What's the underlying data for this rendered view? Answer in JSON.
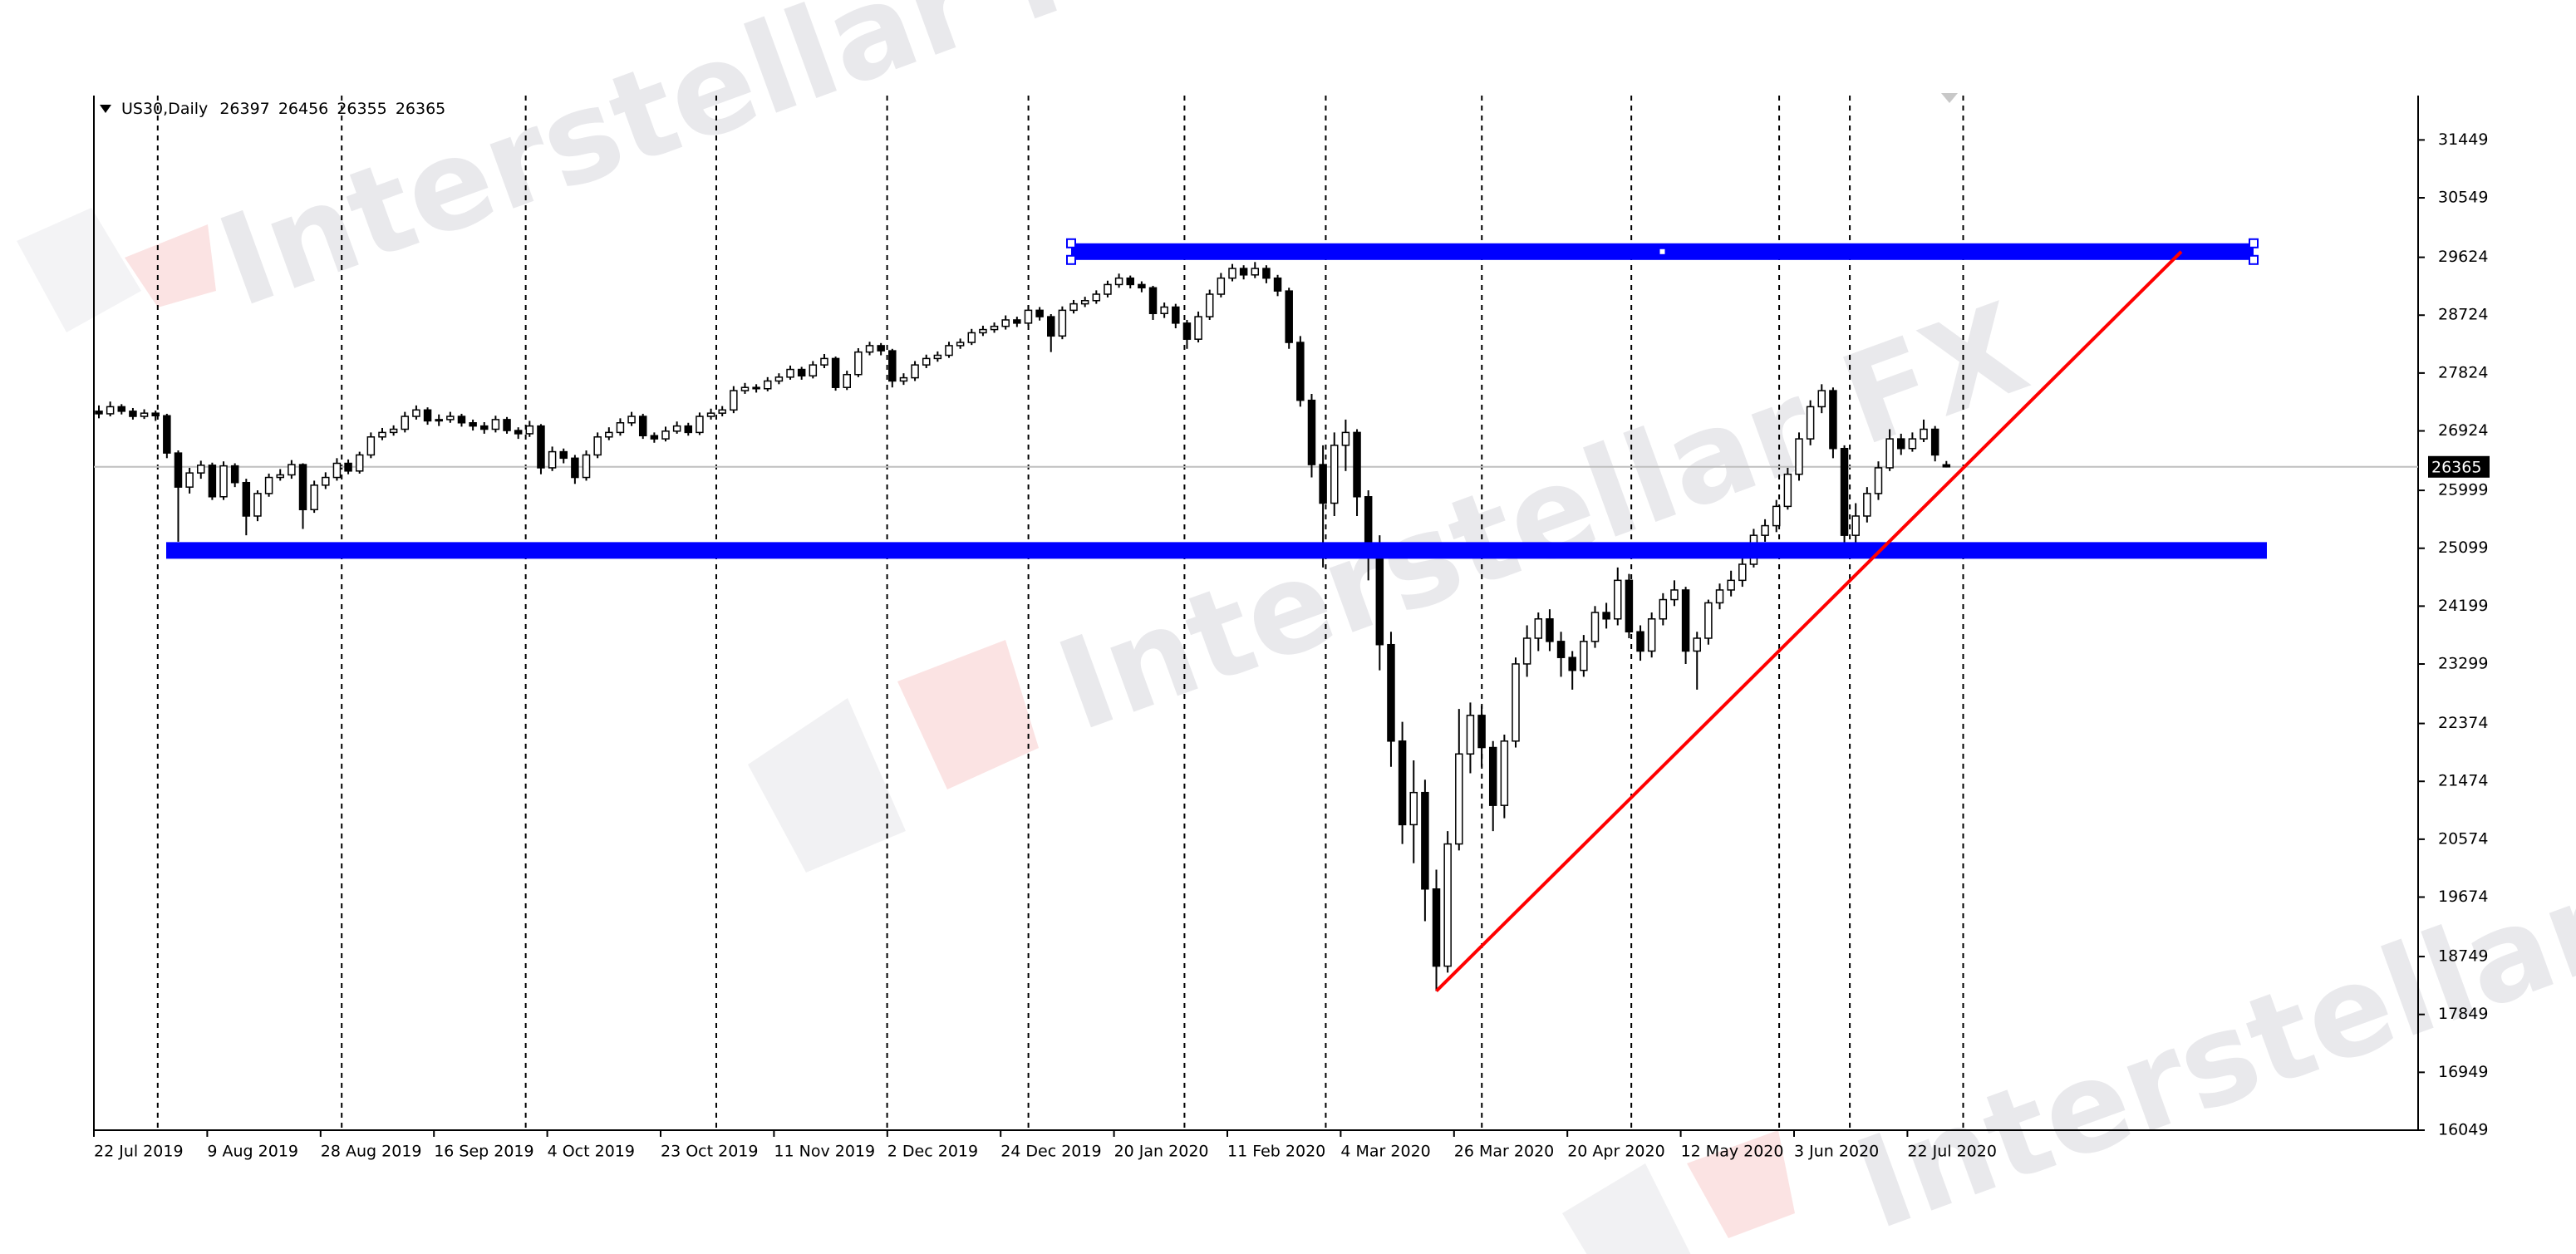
{
  "chart_data": {
    "type": "candlestick",
    "title": "US30,Daily",
    "color": "#000000",
    "categories": [
      "22 Jul 2019",
      null,
      null,
      null,
      null,
      null,
      null,
      null,
      null,
      null,
      "9 Aug 2019",
      null,
      null,
      null,
      null,
      null,
      null,
      null,
      null,
      null,
      "28 Aug 2019",
      null,
      null,
      null,
      null,
      null,
      null,
      null,
      null,
      null,
      "16 Sep 2019",
      null,
      null,
      null,
      null,
      null,
      null,
      null,
      null,
      null,
      "4 Oct 2019",
      null,
      null,
      null,
      null,
      null,
      null,
      null,
      null,
      null,
      "23 Oct 2019",
      null,
      null,
      null,
      null,
      null,
      null,
      null,
      null,
      null,
      "11 Nov 2019",
      null,
      null,
      null,
      null,
      null,
      null,
      null,
      null,
      null,
      "2 Dec 2019",
      null,
      null,
      null,
      null,
      null,
      null,
      null,
      null,
      null,
      "24 Dec 2019",
      null,
      null,
      null,
      null,
      null,
      null,
      null,
      null,
      null,
      "20 Jan 2020",
      null,
      null,
      null,
      null,
      null,
      null,
      null,
      null,
      null,
      "11 Feb 2020",
      null,
      null,
      null,
      null,
      null,
      null,
      null,
      null,
      null,
      "4 Mar 2020",
      null,
      null,
      null,
      null,
      null,
      null,
      null,
      null,
      null,
      "26 Mar 2020",
      null,
      null,
      null,
      null,
      null,
      null,
      null,
      null,
      null,
      "20 Apr 2020",
      null,
      null,
      null,
      null,
      null,
      null,
      null,
      null,
      null,
      "12 May 2020",
      null,
      null,
      null,
      null,
      null,
      null,
      null,
      null,
      null,
      "3 Jun 2020",
      null,
      null,
      null,
      null,
      null,
      null,
      null,
      null,
      null,
      "22 Jul 2020",
      null,
      null,
      null
    ],
    "ohlc": [
      [
        27230,
        27320,
        27120,
        27190
      ],
      [
        27190,
        27380,
        27150,
        27300
      ],
      [
        27300,
        27340,
        27180,
        27230
      ],
      [
        27230,
        27280,
        27100,
        27150
      ],
      [
        27150,
        27260,
        27110,
        27200
      ],
      [
        27200,
        27240,
        27080,
        27160
      ],
      [
        27160,
        27190,
        26500,
        26580
      ],
      [
        26580,
        26620,
        25200,
        26050
      ],
      [
        26050,
        26350,
        25950,
        26270
      ],
      [
        26270,
        26460,
        26180,
        26390
      ],
      [
        26390,
        26430,
        25850,
        25900
      ],
      [
        25900,
        26450,
        25850,
        26380
      ],
      [
        26380,
        26420,
        26050,
        26120
      ],
      [
        26120,
        26180,
        25300,
        25600
      ],
      [
        25600,
        26000,
        25520,
        25950
      ],
      [
        25950,
        26260,
        25900,
        26200
      ],
      [
        26200,
        26330,
        26150,
        26240
      ],
      [
        26240,
        26470,
        26180,
        26400
      ],
      [
        26400,
        26420,
        25400,
        25700
      ],
      [
        25700,
        26150,
        25650,
        26080
      ],
      [
        26080,
        26280,
        26020,
        26200
      ],
      [
        26200,
        26500,
        26150,
        26420
      ],
      [
        26420,
        26480,
        26250,
        26300
      ],
      [
        26300,
        26600,
        26260,
        26550
      ],
      [
        26550,
        26900,
        26500,
        26830
      ],
      [
        26830,
        26970,
        26780,
        26900
      ],
      [
        26900,
        27010,
        26850,
        26950
      ],
      [
        26950,
        27220,
        26900,
        27150
      ],
      [
        27150,
        27320,
        27100,
        27250
      ],
      [
        27250,
        27290,
        27020,
        27080
      ],
      [
        27080,
        27180,
        27000,
        27100
      ],
      [
        27100,
        27220,
        27050,
        27150
      ],
      [
        27150,
        27190,
        26990,
        27050
      ],
      [
        27050,
        27100,
        26930,
        27000
      ],
      [
        27000,
        27060,
        26880,
        26950
      ],
      [
        26950,
        27160,
        26900,
        27100
      ],
      [
        27100,
        27140,
        26880,
        26930
      ],
      [
        26930,
        26980,
        26800,
        26880
      ],
      [
        26880,
        27080,
        26830,
        27000
      ],
      [
        27000,
        27030,
        26250,
        26350
      ],
      [
        26350,
        26680,
        26300,
        26600
      ],
      [
        26600,
        26650,
        26420,
        26500
      ],
      [
        26500,
        26550,
        26100,
        26200
      ],
      [
        26200,
        26620,
        26150,
        26550
      ],
      [
        26550,
        26900,
        26500,
        26830
      ],
      [
        26830,
        26980,
        26780,
        26900
      ],
      [
        26900,
        27120,
        26850,
        27050
      ],
      [
        27050,
        27220,
        27000,
        27150
      ],
      [
        27150,
        27190,
        26800,
        26850
      ],
      [
        26850,
        26900,
        26740,
        26800
      ],
      [
        26800,
        26990,
        26760,
        26920
      ],
      [
        26920,
        27070,
        26880,
        27000
      ],
      [
        27000,
        27050,
        26850,
        26900
      ],
      [
        26900,
        27210,
        26860,
        27150
      ],
      [
        27150,
        27270,
        27100,
        27200
      ],
      [
        27200,
        27310,
        27150,
        27250
      ],
      [
        27250,
        27620,
        27200,
        27550
      ],
      [
        27550,
        27670,
        27500,
        27600
      ],
      [
        27600,
        27650,
        27520,
        27580
      ],
      [
        27580,
        27760,
        27540,
        27700
      ],
      [
        27700,
        27820,
        27650,
        27760
      ],
      [
        27760,
        27940,
        27720,
        27880
      ],
      [
        27880,
        27920,
        27720,
        27780
      ],
      [
        27780,
        28010,
        27740,
        27950
      ],
      [
        27950,
        28120,
        27900,
        28050
      ],
      [
        28050,
        28080,
        27550,
        27600
      ],
      [
        27600,
        27860,
        27560,
        27800
      ],
      [
        27800,
        28210,
        27760,
        28150
      ],
      [
        28150,
        28310,
        28100,
        28250
      ],
      [
        28250,
        28290,
        28100,
        28170
      ],
      [
        28170,
        28200,
        27600,
        27700
      ],
      [
        27700,
        27820,
        27640,
        27750
      ],
      [
        27750,
        28010,
        27700,
        27950
      ],
      [
        27950,
        28110,
        27900,
        28050
      ],
      [
        28050,
        28160,
        28000,
        28100
      ],
      [
        28100,
        28310,
        28060,
        28250
      ],
      [
        28250,
        28360,
        28200,
        28300
      ],
      [
        28300,
        28510,
        28260,
        28450
      ],
      [
        28450,
        28560,
        28400,
        28500
      ],
      [
        28500,
        28610,
        28450,
        28550
      ],
      [
        28550,
        28720,
        28500,
        28650
      ],
      [
        28650,
        28700,
        28540,
        28600
      ],
      [
        28600,
        28880,
        28560,
        28800
      ],
      [
        28800,
        28850,
        28640,
        28700
      ],
      [
        28700,
        28740,
        28150,
        28400
      ],
      [
        28400,
        28860,
        28350,
        28800
      ],
      [
        28800,
        28960,
        28750,
        28900
      ],
      [
        28900,
        29010,
        28850,
        28950
      ],
      [
        28950,
        29110,
        28900,
        29050
      ],
      [
        29050,
        29260,
        29000,
        29200
      ],
      [
        29200,
        29370,
        29150,
        29300
      ],
      [
        29300,
        29340,
        29140,
        29200
      ],
      [
        29200,
        29250,
        29080,
        29150
      ],
      [
        29150,
        29180,
        28650,
        28750
      ],
      [
        28750,
        28920,
        28680,
        28850
      ],
      [
        28850,
        28900,
        28520,
        28600
      ],
      [
        28600,
        28650,
        28200,
        28350
      ],
      [
        28350,
        28780,
        28300,
        28700
      ],
      [
        28700,
        29120,
        28650,
        29050
      ],
      [
        29050,
        29380,
        29000,
        29300
      ],
      [
        29300,
        29520,
        29250,
        29450
      ],
      [
        29450,
        29500,
        29280,
        29350
      ],
      [
        29350,
        29550,
        29300,
        29450
      ],
      [
        29450,
        29500,
        29220,
        29300
      ],
      [
        29300,
        29350,
        29020,
        29100
      ],
      [
        29100,
        29150,
        28200,
        28300
      ],
      [
        28300,
        28400,
        27300,
        27400
      ],
      [
        27400,
        27500,
        26200,
        26400
      ],
      [
        26400,
        26700,
        24800,
        25800
      ],
      [
        25800,
        26900,
        25600,
        26700
      ],
      [
        26700,
        27100,
        26300,
        26900
      ],
      [
        26900,
        26950,
        25600,
        25900
      ],
      [
        25900,
        26000,
        24600,
        25100
      ],
      [
        25100,
        25300,
        23200,
        23600
      ],
      [
        23600,
        23800,
        21700,
        22100
      ],
      [
        22100,
        22400,
        20500,
        20800
      ],
      [
        20800,
        21800,
        20200,
        21300
      ],
      [
        21300,
        21500,
        19300,
        19800
      ],
      [
        19800,
        20100,
        18213,
        18600
      ],
      [
        18600,
        20700,
        18500,
        20500
      ],
      [
        20500,
        22600,
        20400,
        21900
      ],
      [
        21900,
        22700,
        21600,
        22500
      ],
      [
        22500,
        22650,
        21700,
        22000
      ],
      [
        22000,
        22100,
        20700,
        21100
      ],
      [
        21100,
        22200,
        20900,
        22100
      ],
      [
        22100,
        23400,
        22000,
        23300
      ],
      [
        23300,
        23900,
        23100,
        23700
      ],
      [
        23700,
        24100,
        23500,
        24000
      ],
      [
        24000,
        24150,
        23500,
        23650
      ],
      [
        23650,
        23800,
        23100,
        23400
      ],
      [
        23400,
        23500,
        22900,
        23200
      ],
      [
        23200,
        23750,
        23100,
        23650
      ],
      [
        23650,
        24200,
        23550,
        24100
      ],
      [
        24100,
        24250,
        23850,
        24000
      ],
      [
        24000,
        24800,
        23900,
        24600
      ],
      [
        24600,
        24700,
        23700,
        23800
      ],
      [
        23800,
        23900,
        23350,
        23500
      ],
      [
        23500,
        24100,
        23400,
        24000
      ],
      [
        24000,
        24400,
        23900,
        24300
      ],
      [
        24300,
        24600,
        24200,
        24450
      ],
      [
        24450,
        24500,
        23300,
        23500
      ],
      [
        23500,
        23800,
        22900,
        23700
      ],
      [
        23700,
        24300,
        23600,
        24250
      ],
      [
        24250,
        24550,
        24150,
        24450
      ],
      [
        24450,
        24750,
        24350,
        24600
      ],
      [
        24600,
        24950,
        24500,
        24850
      ],
      [
        24850,
        25400,
        24800,
        25300
      ],
      [
        25300,
        25550,
        25200,
        25450
      ],
      [
        25450,
        25850,
        25350,
        25750
      ],
      [
        25750,
        26350,
        25700,
        26250
      ],
      [
        26250,
        26900,
        26150,
        26800
      ],
      [
        26800,
        27400,
        26700,
        27300
      ],
      [
        27300,
        27650,
        27200,
        27550
      ],
      [
        27550,
        27600,
        26500,
        26650
      ],
      [
        26650,
        26700,
        25000,
        25300
      ],
      [
        25300,
        25800,
        25100,
        25600
      ],
      [
        25600,
        26050,
        25500,
        25950
      ],
      [
        25950,
        26450,
        25850,
        26350
      ],
      [
        26350,
        26950,
        26300,
        26800
      ],
      [
        26800,
        26880,
        26550,
        26650
      ],
      [
        26650,
        26900,
        26600,
        26800
      ],
      [
        26800,
        27100,
        26750,
        26950
      ],
      [
        26950,
        27000,
        26450,
        26550
      ],
      [
        26397,
        26456,
        26355,
        26365
      ]
    ],
    "ylim": [
      16049,
      32139
    ],
    "yticks": [
      16049,
      16949,
      17849,
      18749,
      19674,
      20574,
      21474,
      22374,
      23299,
      24199,
      25099,
      25999,
      26924,
      27824,
      28724,
      29624,
      30549,
      31449
    ],
    "grid": false,
    "period_separators": true,
    "hlines": [
      {
        "value": 29712,
        "color": "#0000ff"
      },
      {
        "value": 25065,
        "color": "#0000ff"
      }
    ],
    "trendline": {
      "values": [
        18213,
        29712
      ],
      "color": "#ff0000"
    },
    "watermark": "Interstellar FX"
  }
}
